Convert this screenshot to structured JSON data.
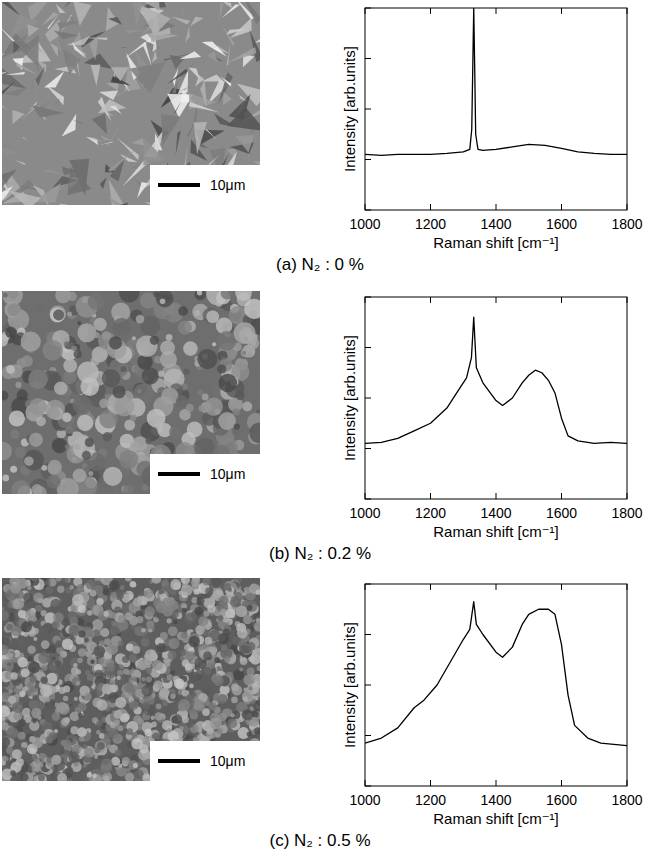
{
  "chart_data": [
    {
      "type": "line",
      "x_label": "Raman shift [cm⁻¹]",
      "y_label": "Intensity [arb.units]",
      "x": [
        1000,
        1050,
        1100,
        1150,
        1200,
        1250,
        1300,
        1320,
        1326,
        1329,
        1332,
        1335,
        1338,
        1345,
        1360,
        1400,
        1450,
        1500,
        1550,
        1600,
        1650,
        1700,
        1750,
        1800
      ],
      "values": [
        1.1,
        1.08,
        1.1,
        1.1,
        1.1,
        1.12,
        1.15,
        1.2,
        1.6,
        2.8,
        4.0,
        2.8,
        1.5,
        1.2,
        1.18,
        1.2,
        1.25,
        1.3,
        1.28,
        1.22,
        1.15,
        1.12,
        1.1,
        1.1
      ],
      "color": "#000000",
      "xlim": [
        1000,
        1800
      ],
      "xticks": [
        1000,
        1200,
        1400,
        1600,
        1800
      ],
      "ylim": [
        0,
        4
      ],
      "yticks": [
        0,
        1,
        2,
        3,
        4
      ],
      "tick_labels": "x"
    },
    {
      "type": "line",
      "x_label": "Raman shift [cm⁻¹]",
      "y_label": "Intensity [arb.units]",
      "x": [
        1000,
        1050,
        1100,
        1150,
        1200,
        1250,
        1280,
        1310,
        1325,
        1332,
        1340,
        1360,
        1400,
        1420,
        1450,
        1480,
        1500,
        1520,
        1540,
        1560,
        1580,
        1600,
        1620,
        1650,
        1700,
        1750,
        1800
      ],
      "values": [
        1.1,
        1.12,
        1.2,
        1.35,
        1.5,
        1.8,
        2.1,
        2.4,
        2.8,
        3.6,
        2.6,
        2.3,
        1.95,
        1.85,
        2.0,
        2.3,
        2.45,
        2.55,
        2.5,
        2.35,
        2.1,
        1.6,
        1.25,
        1.15,
        1.1,
        1.12,
        1.1
      ],
      "color": "#000000",
      "xlim": [
        1000,
        1800
      ],
      "xticks": [
        1000,
        1200,
        1400,
        1600,
        1800
      ],
      "ylim": [
        0,
        4
      ],
      "yticks": [
        0,
        1,
        2,
        3,
        4
      ],
      "tick_labels": "x"
    },
    {
      "type": "line",
      "x_label": "Raman shift [cm⁻¹]",
      "y_label": "Intensity [arb.units]",
      "x": [
        1000,
        1050,
        1100,
        1150,
        1180,
        1220,
        1260,
        1300,
        1320,
        1332,
        1340,
        1360,
        1400,
        1420,
        1450,
        1480,
        1500,
        1530,
        1560,
        1580,
        1600,
        1620,
        1640,
        1680,
        1720,
        1800
      ],
      "values": [
        0.85,
        0.95,
        1.15,
        1.55,
        1.7,
        2.0,
        2.45,
        2.9,
        3.1,
        3.65,
        3.2,
        3.0,
        2.65,
        2.55,
        2.75,
        3.2,
        3.4,
        3.5,
        3.5,
        3.4,
        2.8,
        1.8,
        1.2,
        0.95,
        0.85,
        0.8
      ],
      "color": "#000000",
      "xlim": [
        1000,
        1800
      ],
      "xticks": [
        1000,
        1200,
        1400,
        1600,
        1800
      ],
      "ylim": [
        0,
        4
      ],
      "yticks": [
        0,
        1,
        2,
        3,
        4
      ],
      "tick_labels": "x"
    }
  ],
  "panels": [
    {
      "caption": "(a) N₂ : 0 %",
      "scale_bar": "10μm"
    },
    {
      "caption": "(b) N₂ : 0.2 %",
      "scale_bar": "10μm"
    },
    {
      "caption": "(c) N₂ : 0.5 %",
      "scale_bar": "10μm"
    }
  ]
}
